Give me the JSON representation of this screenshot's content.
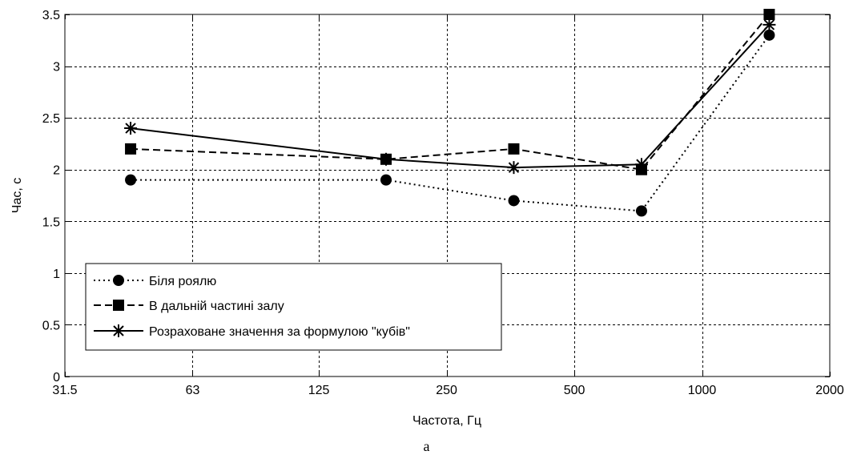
{
  "chart_data": {
    "type": "line",
    "xscale": "log2",
    "x": [
      45,
      180,
      360,
      720,
      1440
    ],
    "xticks": [
      31.5,
      63,
      125,
      250,
      500,
      1000,
      2000
    ],
    "xtick_labels": [
      "31.5",
      "63",
      "125",
      "250",
      "500",
      "1000",
      "2000"
    ],
    "xlim": [
      31.5,
      2000
    ],
    "yticks": [
      0,
      0.5,
      1,
      1.5,
      2,
      2.5,
      3,
      3.5
    ],
    "ytick_labels": [
      "0",
      "0.5",
      "1",
      "1.5",
      "2",
      "2.5",
      "3",
      "3.5"
    ],
    "ylim": [
      0,
      3.5
    ],
    "xlabel": "Частота, Гц",
    "ylabel": "Час, с",
    "grid": true,
    "legend_position": "bottom-left",
    "series": [
      {
        "name": "Біля роялю",
        "values": [
          1.9,
          1.9,
          1.7,
          1.6,
          3.3
        ],
        "line_style": "dotted",
        "marker": "circle",
        "color": "#000000"
      },
      {
        "name": "В дальній частині залу",
        "values": [
          2.2,
          2.1,
          2.2,
          2.0,
          3.5
        ],
        "line_style": "dashed",
        "marker": "square",
        "color": "#000000"
      },
      {
        "name": "Розраховане значення за формулою \"кубів\"",
        "values": [
          2.4,
          2.1,
          2.02,
          2.05,
          3.4
        ],
        "line_style": "solid",
        "marker": "asterisk",
        "color": "#000000"
      }
    ]
  },
  "caption": "а"
}
